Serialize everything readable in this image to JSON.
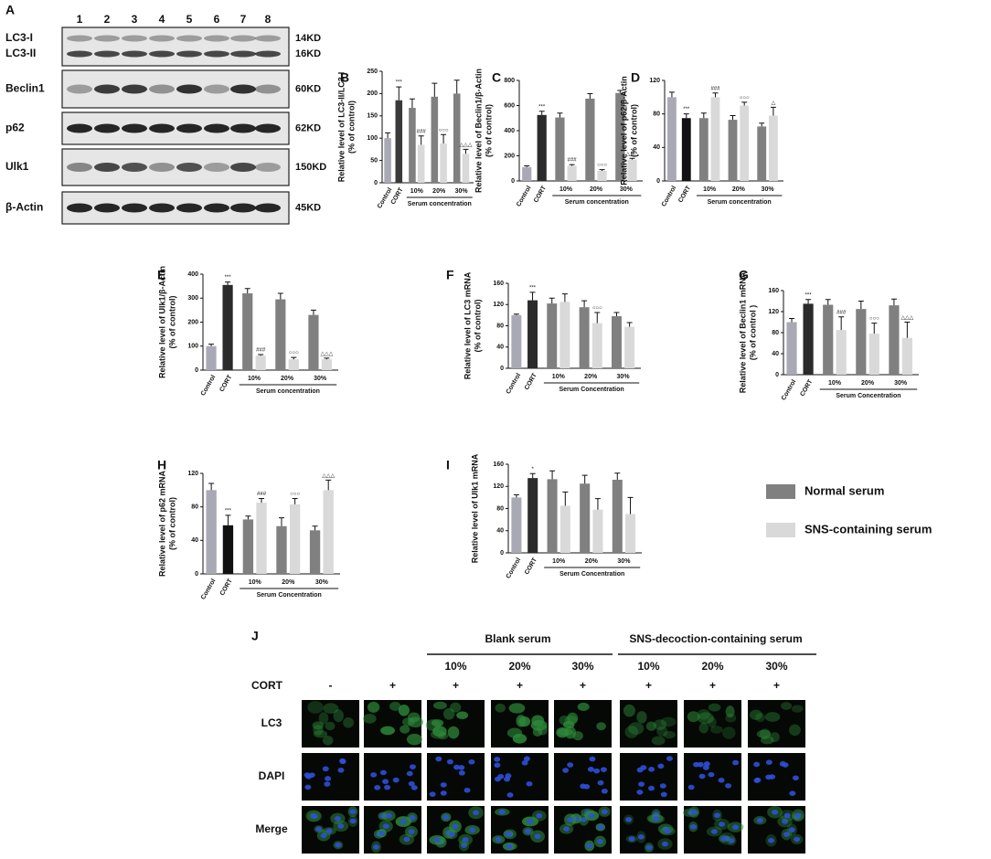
{
  "blot": {
    "label": "A",
    "lanes": [
      "1",
      "2",
      "3",
      "4",
      "5",
      "6",
      "7",
      "8"
    ],
    "rows": [
      {
        "names": [
          "LC3-I",
          "LC3-II"
        ],
        "sizes": [
          "14KD",
          "16KD"
        ]
      },
      {
        "names": [
          "Beclin1"
        ],
        "sizes": [
          "60KD"
        ]
      },
      {
        "names": [
          "p62"
        ],
        "sizes": [
          "62KD"
        ]
      },
      {
        "names": [
          "Ulk1"
        ],
        "sizes": [
          "150KD"
        ]
      },
      {
        "names": [
          "β-Actin"
        ],
        "sizes": [
          "45KD"
        ]
      }
    ]
  },
  "chart_data": [
    {
      "type": "bar",
      "title": "B",
      "ylabel": [
        "Relative level of LC3-II/LC3-I",
        "(% of control)"
      ],
      "categories": [
        "Control",
        "CORT",
        "10%",
        "20%",
        "30%"
      ],
      "group_label": "Serum concentration",
      "ylim": [
        0,
        250
      ],
      "yticks": [
        0,
        50,
        100,
        150,
        200,
        250
      ],
      "series": [
        {
          "color": "#a9a9b6",
          "values": [
            100,
            null,
            null,
            null,
            null
          ],
          "errors": [
            12,
            null,
            null,
            null,
            null
          ]
        },
        {
          "color": "#3a3a3a",
          "values": [
            null,
            185,
            null,
            null,
            null
          ],
          "errors": [
            null,
            30,
            null,
            null,
            null
          ],
          "labels": [
            null,
            "***",
            null,
            null,
            null
          ]
        },
        {
          "color": "#808080",
          "values": [
            null,
            null,
            168,
            193,
            200
          ],
          "errors": [
            null,
            null,
            20,
            30,
            30
          ]
        },
        {
          "color": "#d9d9d9",
          "values": [
            null,
            null,
            85,
            88,
            65
          ],
          "errors": [
            null,
            null,
            20,
            20,
            10
          ],
          "labels": [
            null,
            null,
            "###",
            "○○○",
            "△△△"
          ]
        }
      ]
    },
    {
      "type": "bar",
      "title": "C",
      "ylabel": [
        "Relative level of Beclin1/β-Actin",
        "(% of control)"
      ],
      "categories": [
        "Control",
        "CORT",
        "10%",
        "20%",
        "30%"
      ],
      "group_label": "Serum concentration",
      "ylim": [
        0,
        800
      ],
      "yticks": [
        0,
        200,
        400,
        600,
        800
      ],
      "series": [
        {
          "color": "#a9a9b6",
          "values": [
            110,
            null,
            null,
            null,
            null
          ],
          "errors": [
            10,
            null,
            null,
            null,
            null
          ]
        },
        {
          "color": "#2b2b2b",
          "values": [
            null,
            525,
            null,
            null,
            null
          ],
          "errors": [
            null,
            30,
            null,
            null,
            null
          ],
          "labels": [
            null,
            "***",
            null,
            null,
            null
          ]
        },
        {
          "color": "#808080",
          "values": [
            null,
            null,
            505,
            655,
            700
          ],
          "errors": [
            null,
            null,
            35,
            40,
            20
          ]
        },
        {
          "color": "#d9d9d9",
          "values": [
            null,
            null,
            120,
            80,
            170
          ],
          "errors": [
            null,
            null,
            10,
            10,
            10
          ],
          "labels": [
            null,
            null,
            "###",
            "○○○",
            "△△△"
          ]
        }
      ]
    },
    {
      "type": "bar",
      "title": "D",
      "ylabel": [
        "Relative level of p62/β-Actin",
        "(% of control)"
      ],
      "categories": [
        "Control",
        "CORT",
        "10%",
        "20%",
        "30%"
      ],
      "group_label": "Serum concentration",
      "ylim": [
        0,
        120
      ],
      "yticks": [
        0,
        40,
        80,
        120
      ],
      "series": [
        {
          "color": "#a9a9b6",
          "values": [
            100,
            null,
            null,
            null,
            null
          ],
          "errors": [
            6,
            null,
            null,
            null,
            null
          ]
        },
        {
          "color": "#111111",
          "values": [
            null,
            75,
            null,
            null,
            null
          ],
          "errors": [
            null,
            5,
            null,
            null,
            null
          ],
          "labels": [
            null,
            "***",
            null,
            null,
            null
          ]
        },
        {
          "color": "#808080",
          "values": [
            null,
            null,
            75,
            73,
            65
          ],
          "errors": [
            null,
            null,
            6,
            5,
            4
          ]
        },
        {
          "color": "#d9d9d9",
          "values": [
            null,
            null,
            100,
            90,
            78
          ],
          "errors": [
            null,
            null,
            5,
            4,
            10
          ],
          "labels": [
            null,
            null,
            "###",
            "○○○",
            "△"
          ]
        }
      ]
    },
    {
      "type": "bar",
      "title": "E",
      "ylabel": [
        "Relative level of Ulk1/β-Actin",
        "(% of control)"
      ],
      "categories": [
        "Control",
        "CORT",
        "10%",
        "20%",
        "30%"
      ],
      "group_label": "Serum concentration",
      "ylim": [
        0,
        400
      ],
      "yticks": [
        0,
        100,
        200,
        300,
        400
      ],
      "series": [
        {
          "color": "#a9a9b6",
          "values": [
            100,
            null,
            null,
            null,
            null
          ],
          "errors": [
            8,
            null,
            null,
            null,
            null
          ]
        },
        {
          "color": "#2b2b2b",
          "values": [
            null,
            355,
            null,
            null,
            null
          ],
          "errors": [
            null,
            12,
            null,
            null,
            null
          ],
          "labels": [
            null,
            "***",
            null,
            null,
            null
          ]
        },
        {
          "color": "#808080",
          "values": [
            null,
            null,
            320,
            295,
            230
          ],
          "errors": [
            null,
            null,
            20,
            25,
            20
          ]
        },
        {
          "color": "#d9d9d9",
          "values": [
            null,
            null,
            60,
            45,
            45
          ],
          "errors": [
            null,
            null,
            5,
            8,
            5
          ],
          "labels": [
            null,
            null,
            "###",
            "○○○",
            "△△△"
          ]
        }
      ]
    },
    {
      "type": "bar",
      "title": "F",
      "ylabel": [
        "Relative level of LC3 mRNA",
        "(% of control)"
      ],
      "categories": [
        "Control",
        "CORT",
        "10%",
        "20%",
        "30%"
      ],
      "group_label": "Serum Concentration",
      "ylim": [
        0,
        160
      ],
      "yticks": [
        0,
        40,
        80,
        120,
        160
      ],
      "series": [
        {
          "color": "#a9a9b6",
          "values": [
            100,
            null,
            null,
            null,
            null
          ],
          "errors": [
            2,
            null,
            null,
            null,
            null
          ]
        },
        {
          "color": "#2b2b2b",
          "values": [
            null,
            128,
            null,
            null,
            null
          ],
          "errors": [
            null,
            15,
            null,
            null,
            null
          ],
          "labels": [
            null,
            "***",
            null,
            null,
            null
          ]
        },
        {
          "color": "#808080",
          "values": [
            null,
            null,
            122,
            115,
            98
          ],
          "errors": [
            null,
            null,
            10,
            12,
            7
          ]
        },
        {
          "color": "#d9d9d9",
          "values": [
            null,
            null,
            125,
            85,
            78
          ],
          "errors": [
            null,
            null,
            15,
            20,
            8
          ],
          "labels": [
            null,
            null,
            null,
            "○○○",
            null
          ]
        }
      ]
    },
    {
      "type": "bar",
      "title": "G",
      "ylabel": [
        "Relative level of Beclin1 mRNA",
        "(% of control )"
      ],
      "categories": [
        "Control",
        "CORT",
        "10%",
        "20%",
        "30%"
      ],
      "group_label": "Serum Concentration",
      "ylim": [
        0,
        160
      ],
      "yticks": [
        0,
        40,
        80,
        120,
        160
      ],
      "series": [
        {
          "color": "#a9a9b6",
          "values": [
            100,
            null,
            null,
            null,
            null
          ],
          "errors": [
            7,
            null,
            null,
            null,
            null
          ]
        },
        {
          "color": "#2b2b2b",
          "values": [
            null,
            135,
            null,
            null,
            null
          ],
          "errors": [
            null,
            8,
            null,
            null,
            null
          ],
          "labels": [
            null,
            "***",
            null,
            null,
            null
          ]
        },
        {
          "color": "#808080",
          "values": [
            null,
            null,
            133,
            125,
            132
          ],
          "errors": [
            null,
            null,
            10,
            15,
            12
          ]
        },
        {
          "color": "#d9d9d9",
          "values": [
            null,
            null,
            85,
            78,
            70
          ],
          "errors": [
            null,
            null,
            25,
            20,
            30
          ],
          "labels": [
            null,
            null,
            "###",
            "○○○",
            "△△△"
          ]
        }
      ]
    },
    {
      "type": "bar",
      "title": "H",
      "ylabel": [
        "Relative level of p62 mRNA",
        "(% of control)"
      ],
      "categories": [
        "Control",
        "CORT",
        "10%",
        "20%",
        "30%"
      ],
      "group_label": "Serum Concentration",
      "ylim": [
        0,
        120
      ],
      "yticks": [
        0,
        40,
        80,
        120
      ],
      "series": [
        {
          "color": "#a9a9b6",
          "values": [
            100,
            null,
            null,
            null,
            null
          ],
          "errors": [
            8,
            null,
            null,
            null,
            null
          ]
        },
        {
          "color": "#111111",
          "values": [
            null,
            58,
            null,
            null,
            null
          ],
          "errors": [
            null,
            12,
            null,
            null,
            null
          ],
          "labels": [
            null,
            "***",
            null,
            null,
            null
          ]
        },
        {
          "color": "#808080",
          "values": [
            null,
            null,
            65,
            57,
            52
          ],
          "errors": [
            null,
            null,
            4,
            10,
            5
          ]
        },
        {
          "color": "#d9d9d9",
          "values": [
            null,
            null,
            85,
            83,
            100
          ],
          "errors": [
            null,
            null,
            5,
            7,
            12
          ],
          "labels": [
            null,
            null,
            "###",
            "○○○",
            "△△△"
          ]
        }
      ]
    },
    {
      "type": "bar",
      "title": "I",
      "ylabel": [
        "Relative level of Ulk1 mRNA"
      ],
      "categories": [
        "Control",
        "CORT",
        "10%",
        "20%",
        "30%"
      ],
      "group_label": "Serum Concentration",
      "ylim": [
        0,
        160
      ],
      "yticks": [
        0,
        40,
        80,
        120,
        160
      ],
      "series": [
        {
          "color": "#a9a9b6",
          "values": [
            100,
            null,
            null,
            null,
            null
          ],
          "errors": [
            5,
            null,
            null,
            null,
            null
          ]
        },
        {
          "color": "#2b2b2b",
          "values": [
            null,
            135,
            null,
            null,
            null
          ],
          "errors": [
            null,
            8,
            null,
            null,
            null
          ],
          "labels": [
            null,
            "*",
            null,
            null,
            null
          ]
        },
        {
          "color": "#808080",
          "values": [
            null,
            null,
            133,
            125,
            132
          ],
          "errors": [
            null,
            null,
            15,
            15,
            12
          ]
        },
        {
          "color": "#d9d9d9",
          "values": [
            null,
            null,
            85,
            78,
            70
          ],
          "errors": [
            null,
            null,
            25,
            20,
            30
          ]
        }
      ]
    }
  ],
  "legend": [
    {
      "name": "Normal serum",
      "color": "#808080"
    },
    {
      "name": "SNS-containing serum",
      "color": "#d9d9d9"
    }
  ],
  "imaging": {
    "label": "J",
    "groups": [
      "Blank serum",
      "SNS-decoction-containing serum"
    ],
    "concentrations": [
      "10%",
      "20%",
      "30%",
      "10%",
      "20%",
      "30%"
    ],
    "cort_label": "CORT",
    "cort": [
      "-",
      "+",
      "+",
      "+",
      "+",
      "+",
      "+",
      "+"
    ],
    "rows": [
      "LC3",
      "DAPI",
      "Merge"
    ]
  }
}
